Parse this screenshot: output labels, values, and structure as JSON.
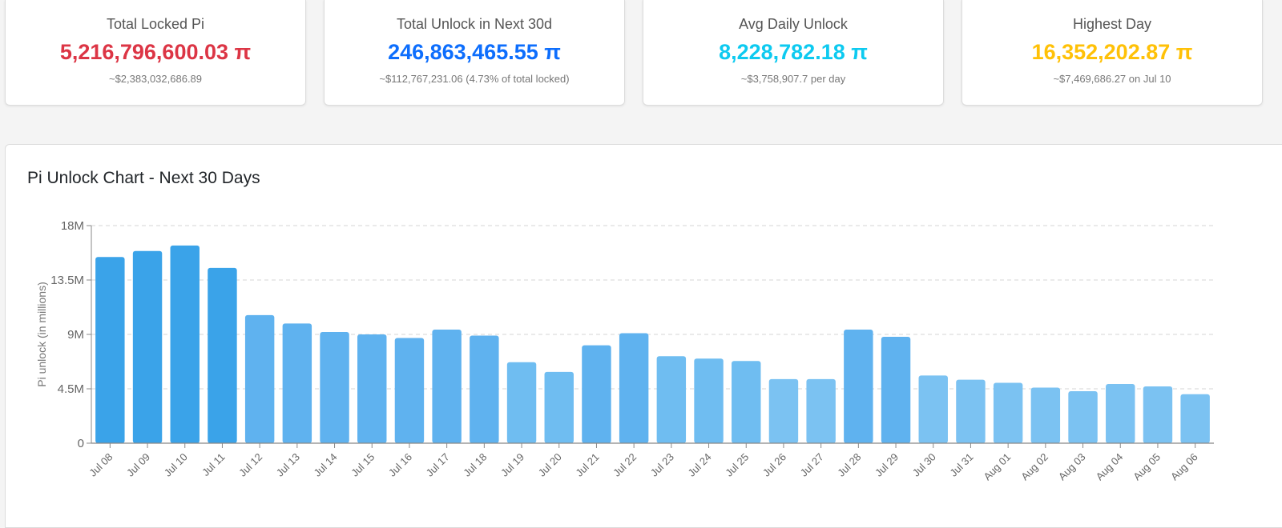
{
  "stats": [
    {
      "label": "Total Locked Pi",
      "value": "5,216,796,600.03 π",
      "sub": "~$2,383,032,686.89",
      "color": "#dc3545"
    },
    {
      "label": "Total Unlock in Next 30d",
      "value": "246,863,465.55 π",
      "sub": "~$112,767,231.06 (4.73% of total locked)",
      "color": "#0d6efd"
    },
    {
      "label": "Avg Daily Unlock",
      "value": "8,228,782.18 π",
      "sub": "~$3,758,907.7 per day",
      "color": "#0dcaf0"
    },
    {
      "label": "Highest Day",
      "value": "16,352,202.87 π",
      "sub": "~$7,469,686.27 on Jul 10",
      "color": "#ffc107"
    }
  ],
  "panel": {
    "title": "Pi Unlock Chart - Next 30 Days"
  },
  "chart_data": {
    "type": "bar",
    "title": "Pi Unlock Chart - Next 30 Days",
    "ylabel": "Pi unlock (in millions)",
    "xlabel": "",
    "ylim": [
      0,
      18
    ],
    "ytick_values": [
      0,
      4.5,
      9,
      13.5,
      18
    ],
    "ytick_labels": [
      "0",
      "4.5M",
      "9M",
      "13.5M",
      "18M"
    ],
    "grid": true,
    "categories": [
      "Jul 08",
      "Jul 09",
      "Jul 10",
      "Jul 11",
      "Jul 12",
      "Jul 13",
      "Jul 14",
      "Jul 15",
      "Jul 16",
      "Jul 17",
      "Jul 18",
      "Jul 19",
      "Jul 20",
      "Jul 21",
      "Jul 22",
      "Jul 23",
      "Jul 24",
      "Jul 25",
      "Jul 26",
      "Jul 27",
      "Jul 28",
      "Jul 29",
      "Jul 30",
      "Jul 31",
      "Aug 01",
      "Aug 02",
      "Aug 03",
      "Aug 04",
      "Aug 05",
      "Aug 06"
    ],
    "values": [
      15.4,
      15.9,
      16.35,
      14.5,
      10.6,
      9.9,
      9.2,
      9.0,
      8.7,
      9.4,
      8.9,
      6.7,
      5.9,
      8.1,
      9.1,
      7.2,
      7.0,
      6.8,
      5.3,
      5.3,
      9.4,
      8.8,
      5.6,
      5.25,
      5.0,
      4.6,
      4.3,
      4.9,
      4.7,
      4.05
    ],
    "bar_colors": [
      "#3aa3e9",
      "#3aa3e9",
      "#3aa3e9",
      "#3aa3e9",
      "#5fb2ef",
      "#5fb2ef",
      "#5fb2ef",
      "#5fb2ef",
      "#5fb2ef",
      "#5fb2ef",
      "#5fb2ef",
      "#6fbdf1",
      "#6fbdf1",
      "#5fb2ef",
      "#5fb2ef",
      "#6fbdf1",
      "#6fbdf1",
      "#6fbdf1",
      "#7bc2f2",
      "#7bc2f2",
      "#5fb2ef",
      "#5fb2ef",
      "#7bc2f2",
      "#7bc2f2",
      "#7bc2f2",
      "#7bc2f2",
      "#7bc2f2",
      "#7bc2f2",
      "#7bc2f2",
      "#7bc2f2"
    ]
  }
}
